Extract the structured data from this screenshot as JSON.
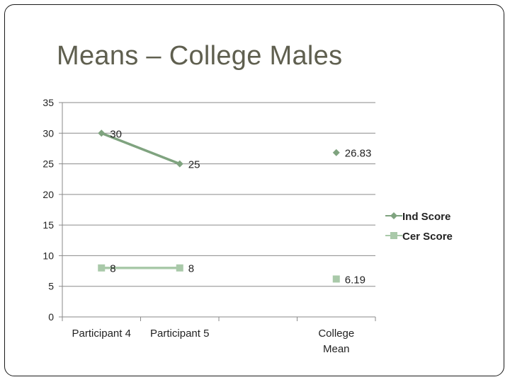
{
  "slide": {
    "title": "Means – College Males"
  },
  "chart_data": {
    "type": "line",
    "title": "",
    "xlabel": "",
    "ylabel": "",
    "ylim": [
      0,
      35
    ],
    "yticks": [
      0,
      5,
      10,
      15,
      20,
      25,
      30,
      35
    ],
    "categories": [
      "Participant 4",
      "Participant 5",
      "",
      "College Mean"
    ],
    "grid": true,
    "legend": "right",
    "series": [
      {
        "name": "Ind Score",
        "marker": "diamond",
        "color": "#7fa37f",
        "values": [
          30,
          25,
          null,
          26.83
        ],
        "labels": [
          "30",
          "25",
          null,
          "26.83"
        ]
      },
      {
        "name": "Cer Score",
        "marker": "square",
        "color": "#a9c9a9",
        "values": [
          8,
          8,
          null,
          6.19
        ],
        "labels": [
          "8",
          "8",
          null,
          "6.19"
        ]
      }
    ]
  }
}
